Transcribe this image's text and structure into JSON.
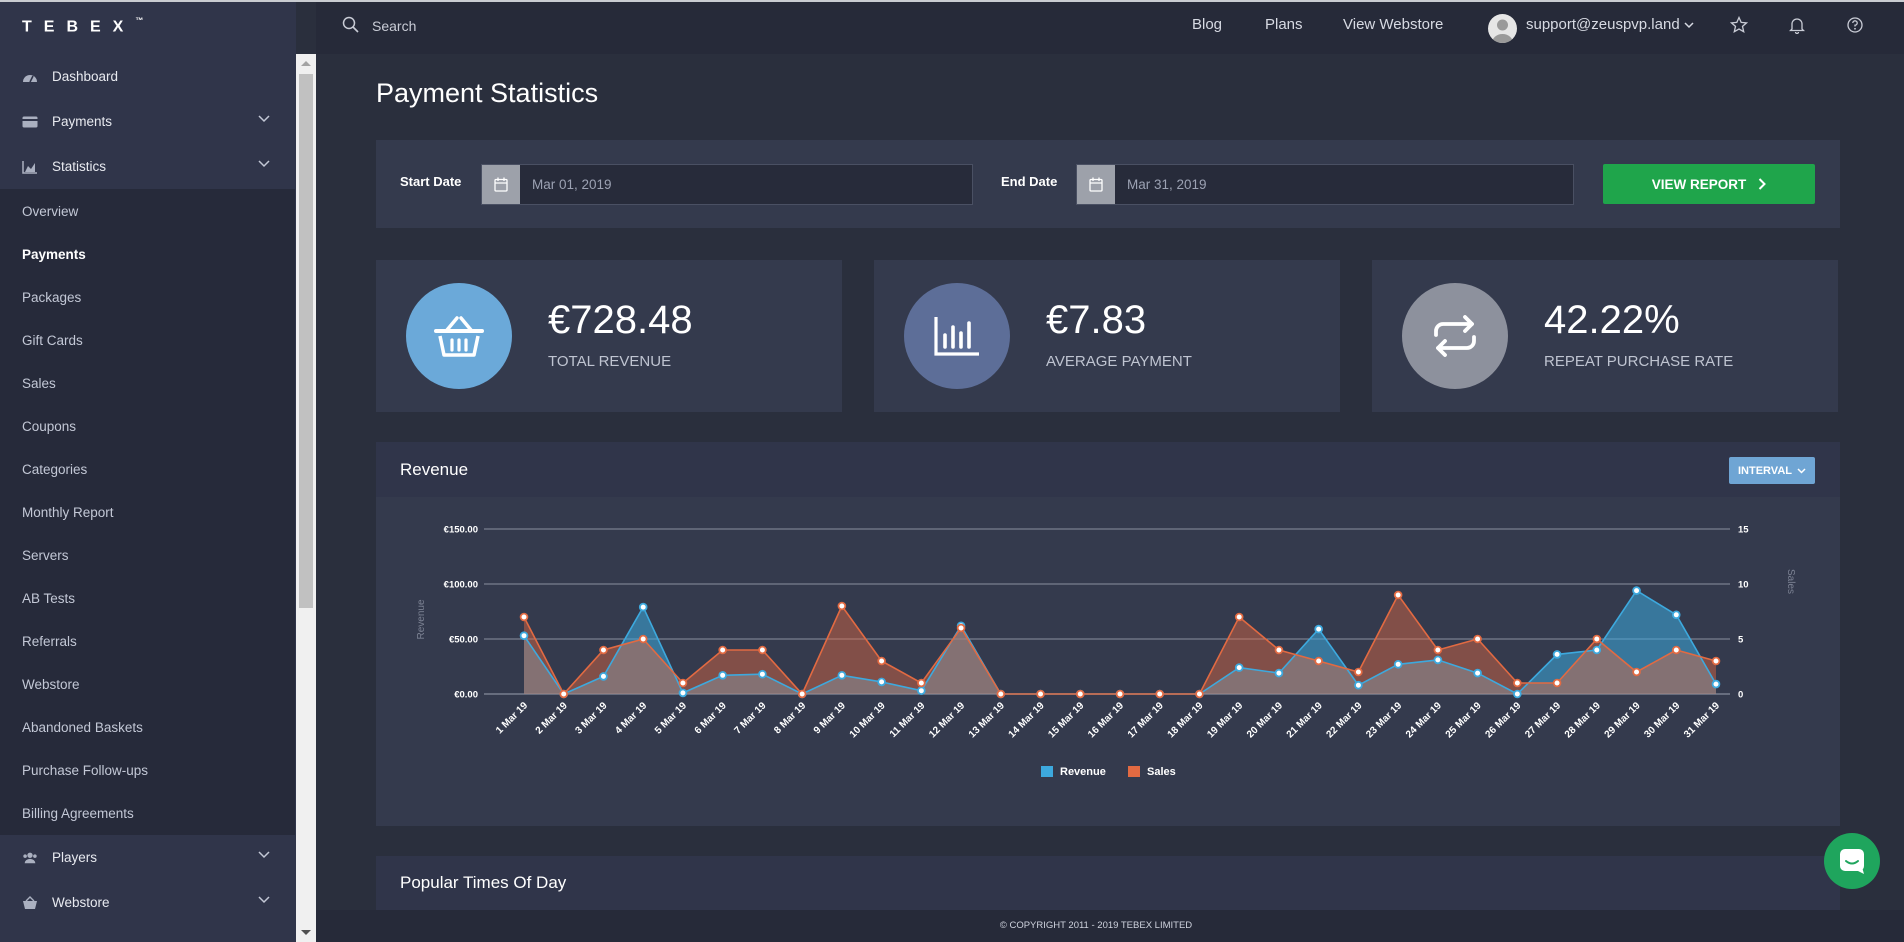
{
  "brand": {
    "logo_text": "TEBEX",
    "logo_mark": "™"
  },
  "sidebar": {
    "main_items": [
      {
        "label": "Dashboard",
        "icon": "dashboard-icon"
      },
      {
        "label": "Payments",
        "icon": "credit-card-icon"
      },
      {
        "label": "Statistics",
        "icon": "bar-chart-icon"
      },
      {
        "label": "Players",
        "icon": "users-icon"
      },
      {
        "label": "Webstore",
        "icon": "basket-icon"
      }
    ],
    "sub_items": [
      "Overview",
      "Payments",
      "Packages",
      "Gift Cards",
      "Sales",
      "Coupons",
      "Categories",
      "Monthly Report",
      "Servers",
      "AB Tests",
      "Referrals",
      "Webstore",
      "Abandoned Baskets",
      "Purchase Follow-ups",
      "Billing Agreements"
    ],
    "active_sub_item": "Payments"
  },
  "header": {
    "search_placeholder": "Search",
    "links": [
      "Blog",
      "Plans",
      "View Webstore"
    ],
    "user_email": "support@zeuspvp.land"
  },
  "page": {
    "title": "Payment Statistics",
    "start_date_label": "Start Date",
    "start_date": "Mar 01, 2019",
    "end_date_label": "End Date",
    "end_date": "Mar 31, 2019",
    "view_report_label": "VIEW REPORT"
  },
  "stats": [
    {
      "value": "€728.48",
      "label": "TOTAL REVENUE",
      "icon": "basket-icon",
      "color": "#6ba9d9"
    },
    {
      "value": "€7.83",
      "label": "AVERAGE PAYMENT",
      "icon": "bar-chart-icon",
      "color": "#5d6e98"
    },
    {
      "value": "42.22%",
      "label": "REPEAT PURCHASE RATE",
      "icon": "repeat-icon",
      "color": "#8d919d"
    }
  ],
  "revenue": {
    "title": "Revenue",
    "interval_label": "INTERVAL"
  },
  "popular": {
    "title": "Popular Times Of Day"
  },
  "footer": {
    "copyright": "© COPYRIGHT 2011 - 2019 TEBEX LIMITED"
  },
  "colors": {
    "revenue": "#3da9de",
    "sales": "#e26a42",
    "accent_green": "#1fa54b"
  },
  "chart_data": {
    "type": "area",
    "categories": [
      "1 Mar 19",
      "2 Mar 19",
      "3 Mar 19",
      "4 Mar 19",
      "5 Mar 19",
      "6 Mar 19",
      "7 Mar 19",
      "8 Mar 19",
      "9 Mar 19",
      "10 Mar 19",
      "11 Mar 19",
      "12 Mar 19",
      "13 Mar 19",
      "14 Mar 19",
      "15 Mar 19",
      "16 Mar 19",
      "17 Mar 19",
      "18 Mar 19",
      "19 Mar 19",
      "20 Mar 19",
      "21 Mar 19",
      "22 Mar 19",
      "23 Mar 19",
      "24 Mar 19",
      "25 Mar 19",
      "26 Mar 19",
      "27 Mar 19",
      "28 Mar 19",
      "29 Mar 19",
      "30 Mar 19",
      "31 Mar 19"
    ],
    "series": [
      {
        "name": "Revenue",
        "axis": "left",
        "values": [
          53,
          0,
          16,
          79,
          1,
          17,
          18,
          0,
          17,
          11,
          3,
          62,
          0,
          0,
          0,
          0,
          0,
          0,
          24,
          19,
          59,
          8,
          27,
          31,
          19,
          0,
          36,
          40,
          94,
          72,
          9
        ]
      },
      {
        "name": "Sales",
        "axis": "right",
        "values": [
          7,
          0,
          4,
          5,
          1,
          4,
          4,
          0,
          8,
          3,
          1,
          6,
          0,
          0,
          0,
          0,
          0,
          0,
          7,
          4,
          3,
          2,
          9,
          4,
          5,
          1,
          1,
          5,
          2,
          4,
          3
        ]
      }
    ],
    "ylabel_left": "Revenue",
    "ylabel_right": "Sales",
    "ylim_left": [
      0,
      150
    ],
    "ylim_right": [
      0,
      15
    ],
    "yticks_left": [
      "€0.00",
      "€50.00",
      "€100.00",
      "€150.00"
    ],
    "yticks_right": [
      "0",
      "5",
      "10",
      "15"
    ],
    "legend": "bottom-center",
    "grid": true
  }
}
